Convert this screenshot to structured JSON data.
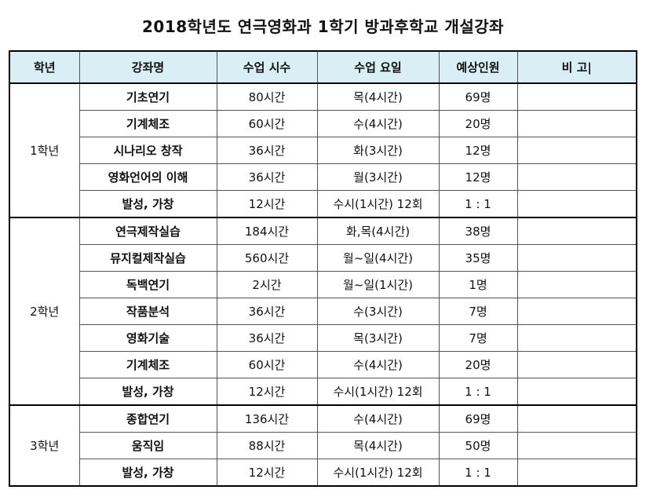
{
  "title": "2018학년도 연극영화과 1학기 방과후학교 개설강좌",
  "headers": [
    "학년",
    "강좌명",
    "수업 시수",
    "수업 요일",
    "예상인원",
    "비 고|"
  ],
  "groups": [
    {
      "grade": "1학년",
      "rows": [
        {
          "course": "기초연기",
          "hours": "80시간",
          "days": "목(4시간)",
          "count": "69명",
          "note": ""
        },
        {
          "course": "기계체조",
          "hours": "60시간",
          "days": "수(4시간)",
          "count": "20명",
          "note": ""
        },
        {
          "course": "시나리오 창작",
          "hours": "36시간",
          "days": "화(3시간)",
          "count": "12명",
          "note": ""
        },
        {
          "course": "영화언어의 이해",
          "hours": "36시간",
          "days": "월(3시간)",
          "count": "12명",
          "note": ""
        },
        {
          "course": "발성, 가창",
          "hours": "12시간",
          "days": "수시(1시간) 12회",
          "count": "1 : 1",
          "note": ""
        }
      ]
    },
    {
      "grade": "2학년",
      "rows": [
        {
          "course": "연극제작실습",
          "hours": "184시간",
          "days": "화,목(4시간)",
          "count": "38명",
          "note": ""
        },
        {
          "course": "뮤지컬제작실습",
          "hours": "560시간",
          "days": "월~일(4시간)",
          "count": "35명",
          "note": ""
        },
        {
          "course": "독백연기",
          "hours": "2시간",
          "days": "월~일(1시간)",
          "count": "1명",
          "note": ""
        },
        {
          "course": "작품분석",
          "hours": "36시간",
          "days": "수(3시간)",
          "count": "7명",
          "note": ""
        },
        {
          "course": "영화기술",
          "hours": "36시간",
          "days": "목(3시간)",
          "count": "7명",
          "note": ""
        },
        {
          "course": "기계체조",
          "hours": "60시간",
          "days": "수(4시간)",
          "count": "20명",
          "note": ""
        },
        {
          "course": "발성, 가창",
          "hours": "12시간",
          "days": "수시(1시간) 12회",
          "count": "1 : 1",
          "note": ""
        }
      ]
    },
    {
      "grade": "3학년",
      "rows": [
        {
          "course": "종합연기",
          "hours": "136시간",
          "days": "수(4시간)",
          "count": "69명",
          "note": ""
        },
        {
          "course": "움직임",
          "hours": "88시간",
          "days": "목(4시간)",
          "count": "50명",
          "note": ""
        },
        {
          "course": "발성, 가창",
          "hours": "12시간",
          "days": "수시(1시간) 12회",
          "count": "1 : 1",
          "note": ""
        }
      ]
    }
  ]
}
